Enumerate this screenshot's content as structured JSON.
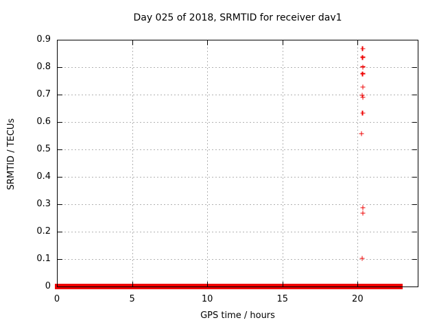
{
  "chart_data": {
    "type": "scatter",
    "title": "Day 025 of 2018, SRMTID for receiver dav1",
    "xlabel": "GPS time / hours",
    "ylabel": "SRMTID / TECUs",
    "xlim": [
      0,
      24
    ],
    "ylim": [
      0,
      0.9
    ],
    "grid": true,
    "legend_position": "none",
    "marker_style": "plus",
    "xticks": {
      "values": [
        0,
        5,
        10,
        15,
        20
      ],
      "labels": [
        "0",
        "5",
        "10",
        "15",
        "20"
      ]
    },
    "yticks": {
      "values": [
        0,
        0.1,
        0.2,
        0.3,
        0.4,
        0.5,
        0.6,
        0.7,
        0.8,
        0.9
      ],
      "labels": [
        "0",
        "0.1",
        "0.2",
        "0.3",
        "0.4",
        "0.5",
        "0.6",
        "0.7",
        "0.8",
        "0.9"
      ]
    },
    "series": [
      {
        "name": "srmtid-outlier-points",
        "points": [
          [
            20.33,
            0.868
          ],
          [
            20.33,
            0.836
          ],
          [
            20.36,
            0.801
          ],
          [
            20.33,
            0.776
          ],
          [
            20.36,
            0.727
          ],
          [
            20.3,
            0.698
          ],
          [
            20.36,
            0.69
          ],
          [
            20.33,
            0.632
          ],
          [
            20.26,
            0.557
          ],
          [
            20.36,
            0.287
          ],
          [
            20.36,
            0.268
          ],
          [
            20.31,
            0.102
          ]
        ]
      },
      {
        "name": "srmtid-baseline-dense-band",
        "y": 0,
        "x_ranges": [
          [
            0,
            20.3
          ],
          [
            20.42,
            20.78
          ],
          [
            20.9,
            22.85
          ]
        ]
      }
    ],
    "colors": {
      "marker": "#ee0000",
      "grid": "#b0b0b0",
      "axis": "#000000",
      "background": "#ffffff"
    }
  }
}
